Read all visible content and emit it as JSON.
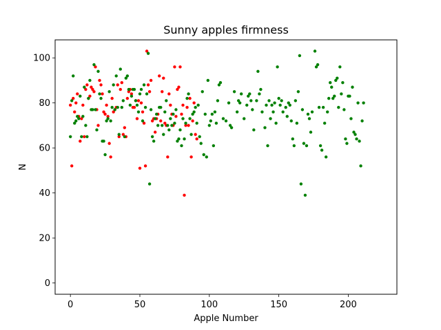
{
  "chart_data": {
    "type": "scatter",
    "title": "Sunny apples firmness",
    "xlabel": "Apple Number",
    "ylabel": "N",
    "xlim": [
      -11,
      235
    ],
    "ylim": [
      -5,
      108
    ],
    "xticks": [
      0,
      50,
      100,
      150,
      200
    ],
    "yticks": [
      0,
      20,
      40,
      60,
      80,
      100
    ],
    "grid": false,
    "series": [
      {
        "color": "#ff0000",
        "points": [
          [
            0,
            79
          ],
          [
            1,
            52
          ],
          [
            2,
            82
          ],
          [
            3,
            76
          ],
          [
            4,
            80
          ],
          [
            5,
            84
          ],
          [
            6,
            74
          ],
          [
            7,
            63
          ],
          [
            8,
            73
          ],
          [
            9,
            79
          ],
          [
            10,
            65
          ],
          [
            11,
            86
          ],
          [
            12,
            88
          ],
          [
            13,
            82
          ],
          [
            14,
            83
          ],
          [
            15,
            87
          ],
          [
            16,
            86
          ],
          [
            17,
            85
          ],
          [
            18,
            96
          ],
          [
            19,
            77
          ],
          [
            20,
            70
          ],
          [
            21,
            90
          ],
          [
            22,
            88
          ],
          [
            23,
            84
          ],
          [
            24,
            76
          ],
          [
            25,
            75
          ],
          [
            26,
            79
          ],
          [
            27,
            74
          ],
          [
            28,
            62
          ],
          [
            29,
            56
          ],
          [
            30,
            82
          ],
          [
            31,
            76
          ],
          [
            32,
            77
          ],
          [
            33,
            78
          ],
          [
            34,
            88
          ],
          [
            35,
            65
          ],
          [
            36,
            86
          ],
          [
            37,
            89
          ],
          [
            38,
            66
          ],
          [
            39,
            69
          ],
          [
            40,
            65
          ],
          [
            41,
            82
          ],
          [
            42,
            85
          ],
          [
            43,
            86
          ],
          [
            44,
            84
          ],
          [
            45,
            78
          ],
          [
            46,
            78
          ],
          [
            47,
            81
          ],
          [
            48,
            73
          ],
          [
            49,
            81
          ],
          [
            50,
            51
          ],
          [
            51,
            80
          ],
          [
            52,
            76
          ],
          [
            53,
            71
          ],
          [
            54,
            52
          ],
          [
            55,
            103
          ],
          [
            56,
            88
          ],
          [
            57,
            85
          ],
          [
            58,
            90
          ],
          [
            59,
            72
          ],
          [
            60,
            73
          ],
          [
            61,
            67
          ],
          [
            62,
            73
          ],
          [
            63,
            75
          ],
          [
            64,
            92
          ],
          [
            65,
            72
          ],
          [
            66,
            85
          ],
          [
            67,
            91
          ],
          [
            68,
            71
          ],
          [
            69,
            70
          ],
          [
            70,
            56
          ],
          [
            71,
            84
          ],
          [
            72,
            79
          ],
          [
            73,
            75
          ],
          [
            74,
            70
          ],
          [
            75,
            96
          ],
          [
            76,
            74
          ],
          [
            77,
            86
          ],
          [
            78,
            87
          ],
          [
            79,
            96
          ],
          [
            80,
            75
          ],
          [
            81,
            79
          ],
          [
            82,
            39
          ],
          [
            83,
            70
          ],
          [
            84,
            78
          ],
          [
            85,
            70
          ],
          [
            86,
            82
          ],
          [
            87,
            56
          ],
          [
            88,
            72
          ],
          [
            89,
            80
          ],
          [
            90,
            66
          ],
          [
            91,
            64
          ]
        ]
      },
      {
        "color": "#008000",
        "points": [
          [
            0,
            65
          ],
          [
            1,
            81
          ],
          [
            2,
            92
          ],
          [
            3,
            71
          ],
          [
            4,
            72
          ],
          [
            5,
            74
          ],
          [
            6,
            73
          ],
          [
            7,
            83
          ],
          [
            8,
            65
          ],
          [
            9,
            74
          ],
          [
            10,
            87
          ],
          [
            11,
            70
          ],
          [
            12,
            65
          ],
          [
            13,
            82
          ],
          [
            14,
            90
          ],
          [
            15,
            77
          ],
          [
            16,
            77
          ],
          [
            17,
            97
          ],
          [
            18,
            77
          ],
          [
            19,
            68
          ],
          [
            20,
            94
          ],
          [
            21,
            84
          ],
          [
            22,
            82
          ],
          [
            23,
            63
          ],
          [
            24,
            63
          ],
          [
            25,
            57
          ],
          [
            26,
            72
          ],
          [
            27,
            73
          ],
          [
            28,
            85
          ],
          [
            29,
            72
          ],
          [
            30,
            78
          ],
          [
            31,
            88
          ],
          [
            32,
            77
          ],
          [
            33,
            92
          ],
          [
            34,
            78
          ],
          [
            35,
            66
          ],
          [
            36,
            95
          ],
          [
            37,
            78
          ],
          [
            38,
            81
          ],
          [
            39,
            65
          ],
          [
            40,
            91
          ],
          [
            41,
            92
          ],
          [
            42,
            86
          ],
          [
            43,
            79
          ],
          [
            44,
            83
          ],
          [
            45,
            86
          ],
          [
            46,
            86
          ],
          [
            47,
            81
          ],
          [
            48,
            79
          ],
          [
            49,
            76
          ],
          [
            50,
            84
          ],
          [
            51,
            86
          ],
          [
            52,
            72
          ],
          [
            53,
            88
          ],
          [
            54,
            78
          ],
          [
            55,
            84
          ],
          [
            56,
            102
          ],
          [
            57,
            44
          ],
          [
            58,
            77
          ],
          [
            59,
            65
          ],
          [
            60,
            63
          ],
          [
            61,
            73
          ],
          [
            62,
            75
          ],
          [
            63,
            70
          ],
          [
            64,
            78
          ],
          [
            65,
            78
          ],
          [
            66,
            70
          ],
          [
            67,
            66
          ],
          [
            68,
            76
          ],
          [
            69,
            81
          ],
          [
            70,
            70
          ],
          [
            71,
            68
          ],
          [
            72,
            73
          ],
          [
            73,
            70
          ],
          [
            74,
            75
          ],
          [
            75,
            71
          ],
          [
            76,
            77
          ],
          [
            77,
            63
          ],
          [
            78,
            64
          ],
          [
            79,
            68
          ],
          [
            80,
            61
          ],
          [
            81,
            73
          ],
          [
            82,
            64
          ],
          [
            83,
            71
          ],
          [
            84,
            82
          ],
          [
            85,
            84
          ],
          [
            86,
            73
          ],
          [
            87,
            66
          ],
          [
            88,
            75
          ],
          [
            89,
            76
          ],
          [
            90,
            78
          ],
          [
            91,
            71
          ],
          [
            92,
            79
          ],
          [
            93,
            65
          ],
          [
            94,
            62
          ],
          [
            95,
            85
          ],
          [
            96,
            57
          ],
          [
            97,
            75
          ],
          [
            98,
            56
          ],
          [
            99,
            90
          ],
          [
            100,
            70
          ],
          [
            101,
            72
          ],
          [
            102,
            75
          ],
          [
            103,
            61
          ],
          [
            104,
            76
          ],
          [
            105,
            71
          ],
          [
            106,
            81
          ],
          [
            107,
            88
          ],
          [
            108,
            89
          ],
          [
            110,
            73
          ],
          [
            112,
            72
          ],
          [
            114,
            80
          ],
          [
            115,
            70
          ],
          [
            116,
            69
          ],
          [
            118,
            85
          ],
          [
            120,
            76
          ],
          [
            121,
            81
          ],
          [
            122,
            80
          ],
          [
            123,
            84
          ],
          [
            125,
            73
          ],
          [
            127,
            79
          ],
          [
            128,
            83
          ],
          [
            129,
            84
          ],
          [
            130,
            81
          ],
          [
            131,
            77
          ],
          [
            132,
            68
          ],
          [
            134,
            81
          ],
          [
            135,
            94
          ],
          [
            136,
            84
          ],
          [
            137,
            86
          ],
          [
            138,
            76
          ],
          [
            140,
            69
          ],
          [
            141,
            79
          ],
          [
            142,
            61
          ],
          [
            143,
            81
          ],
          [
            144,
            73
          ],
          [
            145,
            79
          ],
          [
            146,
            76
          ],
          [
            147,
            80
          ],
          [
            148,
            71
          ],
          [
            149,
            96
          ],
          [
            150,
            82
          ],
          [
            151,
            79
          ],
          [
            152,
            81
          ],
          [
            153,
            76
          ],
          [
            155,
            78
          ],
          [
            156,
            74
          ],
          [
            157,
            80
          ],
          [
            158,
            79
          ],
          [
            159,
            72
          ],
          [
            160,
            64
          ],
          [
            161,
            61
          ],
          [
            162,
            81
          ],
          [
            163,
            71
          ],
          [
            164,
            85
          ],
          [
            165,
            101
          ],
          [
            166,
            44
          ],
          [
            167,
            77
          ],
          [
            168,
            62
          ],
          [
            169,
            39
          ],
          [
            170,
            61
          ],
          [
            171,
            75
          ],
          [
            172,
            73
          ],
          [
            173,
            67
          ],
          [
            174,
            76
          ],
          [
            176,
            103
          ],
          [
            177,
            96
          ],
          [
            178,
            97
          ],
          [
            179,
            78
          ],
          [
            180,
            61
          ],
          [
            181,
            59
          ],
          [
            182,
            78
          ],
          [
            183,
            71
          ],
          [
            184,
            56
          ],
          [
            185,
            76
          ],
          [
            186,
            82
          ],
          [
            187,
            89
          ],
          [
            188,
            87
          ],
          [
            189,
            82
          ],
          [
            190,
            83
          ],
          [
            191,
            90
          ],
          [
            192,
            91
          ],
          [
            193,
            78
          ],
          [
            194,
            96
          ],
          [
            195,
            84
          ],
          [
            196,
            89
          ],
          [
            197,
            77
          ],
          [
            198,
            64
          ],
          [
            199,
            62
          ],
          [
            200,
            83
          ],
          [
            201,
            83
          ],
          [
            202,
            73
          ],
          [
            203,
            87
          ],
          [
            204,
            67
          ],
          [
            205,
            66
          ],
          [
            206,
            64
          ],
          [
            207,
            80
          ],
          [
            208,
            63
          ],
          [
            209,
            52
          ],
          [
            210,
            72
          ],
          [
            211,
            80
          ]
        ]
      }
    ]
  }
}
